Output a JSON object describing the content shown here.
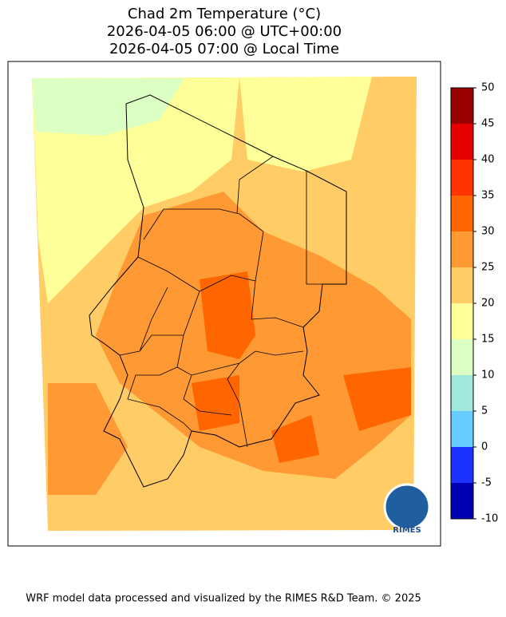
{
  "title": [
    "Chad 2m Temperature (°C)",
    "2026-04-05 06:00 @ UTC+00:00",
    "2026-04-05 07:00 @ Local Time"
  ],
  "colorbar": {
    "ticks": [
      -10,
      -5,
      0,
      5,
      10,
      15,
      20,
      25,
      30,
      35,
      40,
      45,
      50
    ],
    "colors": [
      "#0000b4",
      "#1e32ff",
      "#66ccff",
      "#a0e8dc",
      "#dcffc4",
      "#ffff99",
      "#ffcc66",
      "#ff9933",
      "#ff6600",
      "#ff3300",
      "#e60000",
      "#990000"
    ]
  },
  "logo": "RIMES",
  "footer": "WRF model data processed and visualized by the RIMES R&D Team. © 2025"
}
